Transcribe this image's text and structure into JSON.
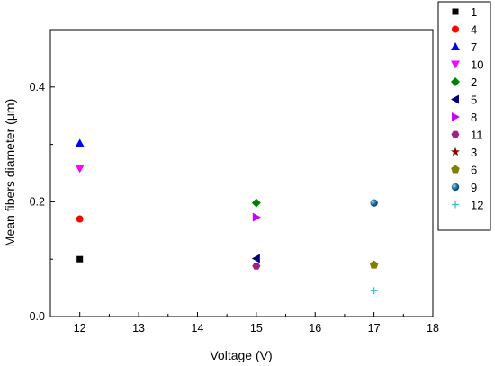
{
  "chart_data": {
    "type": "scatter",
    "xlabel": "Voltage (V)",
    "ylabel": "Mean fibers diameter (μm)",
    "xlim": [
      11.5,
      18
    ],
    "ylim": [
      0.0,
      0.5
    ],
    "xticks": [
      "12",
      "13",
      "14",
      "15",
      "16",
      "17",
      "18"
    ],
    "yticks": [
      "0.0",
      "0.2",
      "0.4"
    ],
    "ytick_values": [
      0.0,
      0.2,
      0.4
    ],
    "grid": false,
    "legend_position": "outside-right",
    "series": [
      {
        "name": "1",
        "x": 12,
        "y": 0.1,
        "marker": "square",
        "color": "#000000"
      },
      {
        "name": "4",
        "x": 12,
        "y": 0.17,
        "marker": "circle",
        "color": "#ff0000"
      },
      {
        "name": "7",
        "x": 12,
        "y": 0.302,
        "marker": "triangle-up",
        "color": "#0000ff"
      },
      {
        "name": "10",
        "x": 12,
        "y": 0.258,
        "marker": "triangle-down",
        "color": "#ff00ff"
      },
      {
        "name": "2",
        "x": 15,
        "y": 0.198,
        "marker": "diamond",
        "color": "#008000"
      },
      {
        "name": "5",
        "x": 15,
        "y": 0.101,
        "marker": "triangle-left",
        "color": "#000080"
      },
      {
        "name": "8",
        "x": 15,
        "y": 0.173,
        "marker": "triangle-right",
        "color": "#cc00ff"
      },
      {
        "name": "11",
        "x": 15,
        "y": 0.088,
        "marker": "hexagon",
        "color": "#a0208a"
      },
      {
        "name": "3",
        "x": null,
        "y": null,
        "marker": "star",
        "color": "#8b0000"
      },
      {
        "name": "6",
        "x": 17,
        "y": 0.09,
        "marker": "pentagon",
        "color": "#808000"
      },
      {
        "name": "9",
        "x": 17,
        "y": 0.198,
        "marker": "sphere",
        "color": "#1f6fb2"
      },
      {
        "name": "12",
        "x": 17,
        "y": 0.045,
        "marker": "plus",
        "color": "#3fbfd0"
      }
    ]
  }
}
